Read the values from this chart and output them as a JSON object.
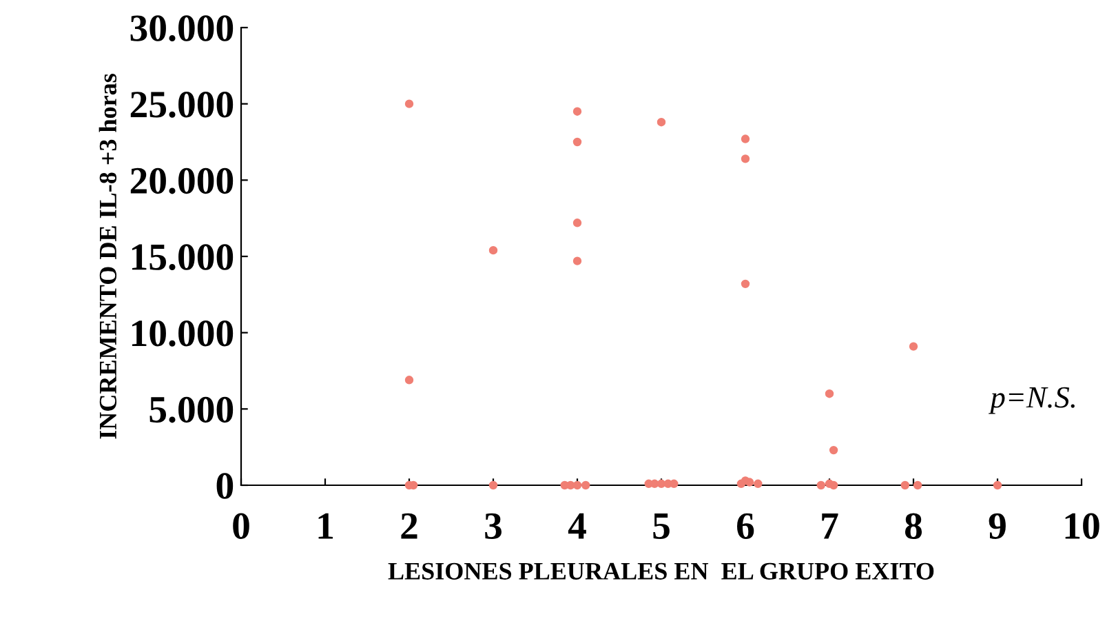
{
  "chart_data": {
    "type": "scatter",
    "xlabel": "LESIONES PLEURALES EN  EL GRUPO EXITO",
    "ylabel": "INCREMENTO DE IL-8 +3 horas",
    "annotations": [
      "p=N.S."
    ],
    "series": [
      {
        "color": "#f07f74",
        "x": [
          2,
          2,
          2,
          2.05,
          3,
          3,
          4,
          4,
          4,
          4,
          3.85,
          3.92,
          4,
          4.1,
          5,
          4.85,
          4.92,
          5,
          5.08,
          5.15,
          6,
          6,
          6,
          5.95,
          6,
          6.05,
          6.15,
          7,
          7.05,
          6.9,
          7,
          7.05,
          8,
          7.9,
          8.05,
          9
        ],
        "values": [
          25000,
          6900,
          0,
          0,
          15400,
          0,
          24500,
          22500,
          17200,
          14700,
          0,
          0,
          0,
          0,
          23800,
          100,
          100,
          100,
          100,
          100,
          22700,
          21400,
          13200,
          100,
          300,
          200,
          100,
          6000,
          2300,
          0,
          100,
          0,
          9100,
          0,
          0,
          0
        ]
      }
    ],
    "xlim": [
      0,
      10
    ],
    "xticks": [
      0,
      1,
      2,
      3,
      4,
      5,
      6,
      7,
      8,
      9,
      10
    ],
    "ylim": [
      0,
      30000
    ],
    "yticks": [
      {
        "value": 0,
        "label": "0"
      },
      {
        "value": 5000,
        "label": "5.000"
      },
      {
        "value": 10000,
        "label": "10.000"
      },
      {
        "value": 15000,
        "label": "15.000"
      },
      {
        "value": 20000,
        "label": "20.000"
      },
      {
        "value": 25000,
        "label": "25.000"
      },
      {
        "value": 30000,
        "label": "30.000"
      }
    ],
    "marker": "circle",
    "grid": false,
    "legend": false
  }
}
